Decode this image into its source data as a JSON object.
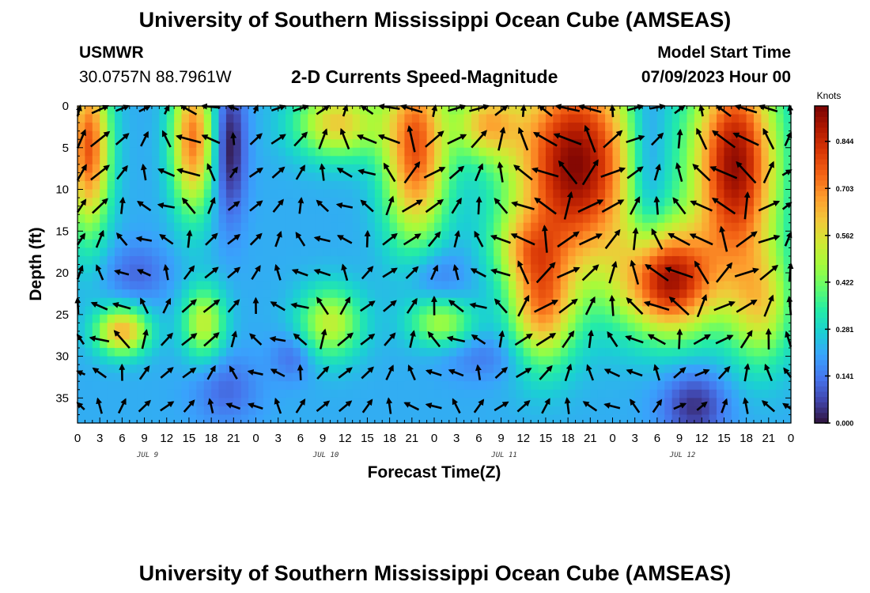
{
  "header": {
    "title": "University of Southern Mississippi Ocean Cube (AMSEAS)",
    "station": "USMWR",
    "coords": "30.0757N  88.7961W",
    "subtitle": "2-D Currents Speed-Magnitude",
    "model_start_label": "Model Start Time",
    "model_start_value": "07/09/2023 Hour 00"
  },
  "footer": {
    "title": "University of Southern Mississippi Ocean Cube (AMSEAS)"
  },
  "chart_data": {
    "type": "heatmap",
    "title": "2-D Currents Speed-Magnitude",
    "xlabel": "Forecast Time(Z)",
    "ylabel": "Depth (ft)",
    "x_tick_labels": [
      "0",
      "3",
      "6",
      "9",
      "12",
      "15",
      "18",
      "21",
      "0",
      "3",
      "6",
      "9",
      "12",
      "15",
      "18",
      "21",
      "0",
      "3",
      "6",
      "9",
      "12",
      "15",
      "18",
      "21",
      "0",
      "3",
      "6",
      "9",
      "12",
      "15",
      "18",
      "21",
      "0"
    ],
    "x_range_hours": [
      0,
      96
    ],
    "day_labels": [
      "JUL 9",
      "JUL 10",
      "JUL 11",
      "JUL 12"
    ],
    "day_label_hours": [
      9,
      33,
      57,
      81
    ],
    "y_ticks": [
      0,
      5,
      10,
      15,
      20,
      25,
      30,
      35
    ],
    "y_range_ft": [
      0,
      38
    ],
    "colorbar": {
      "unit": "Knots",
      "ticks": [
        "0.844",
        "0.703",
        "0.562",
        "0.422",
        "0.281",
        "0.141",
        "0.000"
      ],
      "tick_values": [
        0.844,
        0.703,
        0.562,
        0.422,
        0.281,
        0.141,
        0.0
      ],
      "range": [
        0,
        0.95
      ],
      "colors": [
        "#30123b",
        "#4145ab",
        "#4675ed",
        "#39a2fc",
        "#1bcfd4",
        "#24eca6",
        "#61fc6c",
        "#a4fc3b",
        "#d1e834",
        "#f3c63a",
        "#fe9b2d",
        "#f36315",
        "#d93806",
        "#b11901",
        "#7a0403"
      ]
    },
    "speed_model": {
      "base": 0.22,
      "blobs": [
        {
          "t": 1.5,
          "d": 5,
          "st": 2,
          "sd": 7,
          "a": 0.55
        },
        {
          "t": 15.5,
          "d": 4,
          "st": 2,
          "sd": 6,
          "a": 0.5
        },
        {
          "t": 20.5,
          "d": 5,
          "st": 1.5,
          "sd": 6,
          "a": -0.22
        },
        {
          "t": 35,
          "d": 2,
          "st": 4,
          "sd": 3,
          "a": 0.38
        },
        {
          "t": 45.5,
          "d": 5,
          "st": 3,
          "sd": 8,
          "a": 0.55
        },
        {
          "t": 55,
          "d": 2,
          "st": 3,
          "sd": 3,
          "a": 0.35
        },
        {
          "t": 67,
          "d": 7,
          "st": 6,
          "sd": 9,
          "a": 0.72
        },
        {
          "t": 76.5,
          "d": 7,
          "st": 2,
          "sd": 9,
          "a": -0.18
        },
        {
          "t": 88.5,
          "d": 7,
          "st": 4,
          "sd": 9,
          "a": 0.7
        },
        {
          "t": 79.5,
          "d": 21,
          "st": 4.5,
          "sd": 4.5,
          "a": 0.66
        },
        {
          "t": 6,
          "d": 27,
          "st": 2.5,
          "sd": 2,
          "a": 0.42
        },
        {
          "t": 17,
          "d": 26,
          "st": 2,
          "sd": 3,
          "a": 0.3
        },
        {
          "t": 34,
          "d": 26,
          "st": 3,
          "sd": 3,
          "a": 0.3
        },
        {
          "t": 49,
          "d": 26,
          "st": 3,
          "sd": 2,
          "a": 0.25
        },
        {
          "t": 62.5,
          "d": 24,
          "st": 3,
          "sd": 5,
          "a": 0.42
        },
        {
          "t": 60,
          "d": 17,
          "st": 3,
          "sd": 3,
          "a": 0.2
        },
        {
          "t": 92,
          "d": 24,
          "st": 3,
          "sd": 5,
          "a": 0.3
        },
        {
          "t": 20,
          "d": 34,
          "st": 3,
          "sd": 3,
          "a": -0.1
        },
        {
          "t": 83,
          "d": 36,
          "st": 3,
          "sd": 3,
          "a": -0.18
        },
        {
          "t": 8,
          "d": 20,
          "st": 3,
          "sd": 2.5,
          "a": -0.1
        },
        {
          "t": 48,
          "d": 20,
          "st": 3,
          "sd": 2.5,
          "a": -0.1
        },
        {
          "t": 29,
          "d": 30,
          "st": 2,
          "sd": 2,
          "a": -0.1
        },
        {
          "t": 55,
          "d": 30,
          "st": 4,
          "sd": 2,
          "a": -0.08
        }
      ]
    },
    "vector_grid": {
      "depths_ft": [
        0,
        4,
        8,
        12,
        16,
        20,
        24,
        28,
        32,
        36
      ],
      "hour_step": 3
    }
  }
}
